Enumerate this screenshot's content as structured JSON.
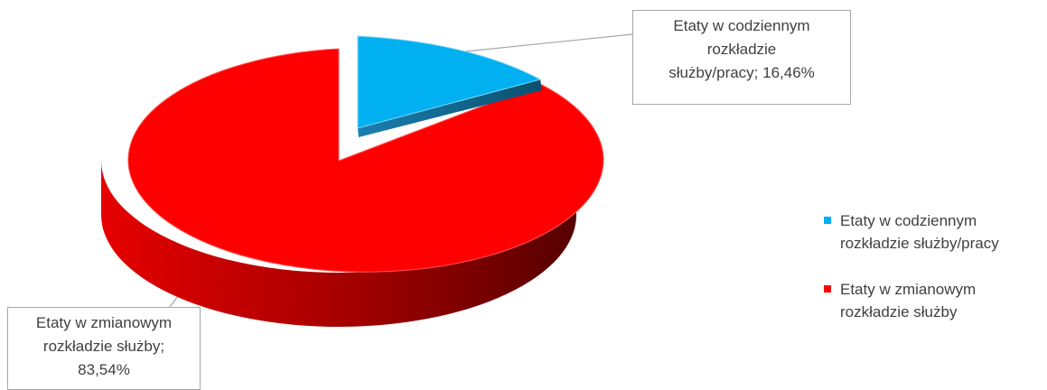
{
  "chart_data": {
    "type": "pie",
    "title": "",
    "slices": [
      {
        "label": "Etaty w codziennym rozkładzie służby/pracy",
        "value": 16.46,
        "value_label": "16,46%",
        "color": "#00b0f0",
        "dark_color": "#0a5f86",
        "exploded": true
      },
      {
        "label": "Etaty w zmianowym rozkładzie służby",
        "value": 83.54,
        "value_label": "83,54%",
        "color": "#ff0000",
        "dark_color": "#6b0000",
        "exploded": false
      }
    ],
    "style": "3d-pie",
    "legend_position": "right"
  },
  "callouts": {
    "blue": [
      "Etaty w codziennym",
      "rozkładzie",
      "służby/pracy; 16,46%"
    ],
    "red": [
      "Etaty w zmianowym",
      "rozkładzie służby;",
      "83,54%"
    ]
  },
  "legend": [
    {
      "line1": "Etaty w codziennym",
      "line2": "rozkładzie służby/pracy",
      "color": "#00b0f0"
    },
    {
      "line1": "Etaty w zmianowym",
      "line2": "rozkładzie służby",
      "color": "#ff0000"
    }
  ]
}
